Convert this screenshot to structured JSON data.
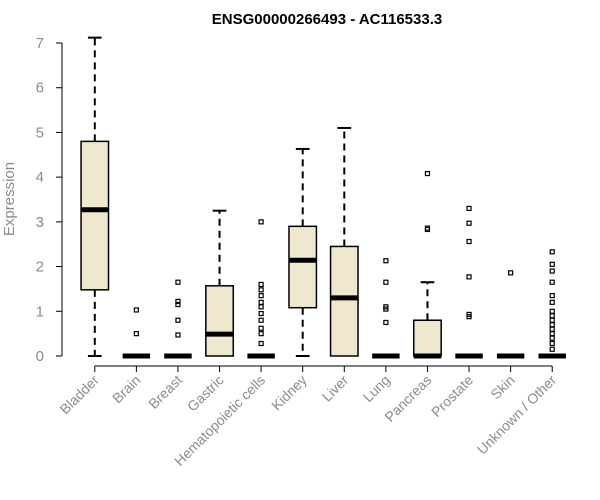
{
  "chart_data": {
    "type": "boxplot",
    "title": "ENSG00000266493 - AC116533.3",
    "xlabel": "",
    "ylabel": "Expression",
    "ylim": [
      0,
      7
    ],
    "yticks": [
      0,
      1,
      2,
      3,
      4,
      5,
      6,
      7
    ],
    "grid": false,
    "box_color": "#efe8cf",
    "categories": [
      "Bladder",
      "Brain",
      "Breast",
      "Gastric",
      "Hematopoietic cells",
      "Kidney",
      "Liver",
      "Lung",
      "Pancreas",
      "Prostate",
      "Skin",
      "Unknown / Other"
    ],
    "boxes": [
      {
        "min": 0.0,
        "q1": 1.48,
        "median": 3.27,
        "q3": 4.8,
        "max": 7.12,
        "outliers": []
      },
      {
        "min": 0.0,
        "q1": 0.0,
        "median": 0.0,
        "q3": 0.0,
        "max": 0.0,
        "outliers": [
          0.5,
          1.03
        ]
      },
      {
        "min": 0.0,
        "q1": 0.0,
        "median": 0.0,
        "q3": 0.0,
        "max": 0.0,
        "outliers": [
          0.47,
          0.8,
          1.15,
          1.22,
          1.65
        ]
      },
      {
        "min": 0.0,
        "q1": 0.0,
        "median": 0.49,
        "q3": 1.57,
        "max": 3.25,
        "outliers": []
      },
      {
        "min": 0.0,
        "q1": 0.0,
        "median": 0.0,
        "q3": 0.0,
        "max": 0.0,
        "outliers": [
          0.28,
          0.5,
          0.62,
          0.8,
          0.95,
          1.1,
          1.2,
          1.35,
          1.48,
          1.6,
          3.0
        ]
      },
      {
        "min": 0.0,
        "q1": 1.08,
        "median": 2.14,
        "q3": 2.9,
        "max": 4.63,
        "outliers": []
      },
      {
        "min": 0.0,
        "q1": 0.0,
        "median": 1.3,
        "q3": 2.45,
        "max": 5.1,
        "outliers": []
      },
      {
        "min": 0.0,
        "q1": 0.0,
        "median": 0.0,
        "q3": 0.0,
        "max": 0.0,
        "outliers": [
          0.75,
          1.05,
          1.1,
          1.65,
          2.13
        ]
      },
      {
        "min": 0.0,
        "q1": 0.0,
        "median": 0.0,
        "q3": 0.8,
        "max": 1.65,
        "outliers": [
          2.83,
          2.86,
          4.08
        ]
      },
      {
        "min": 0.0,
        "q1": 0.0,
        "median": 0.0,
        "q3": 0.0,
        "max": 0.0,
        "outliers": [
          0.88,
          0.93,
          1.77,
          2.56,
          2.97,
          3.3
        ]
      },
      {
        "min": 0.0,
        "q1": 0.0,
        "median": 0.0,
        "q3": 0.0,
        "max": 0.0,
        "outliers": [
          1.86
        ]
      },
      {
        "min": 0.0,
        "q1": 0.0,
        "median": 0.0,
        "q3": 0.0,
        "max": 0.0,
        "outliers": [
          0.15,
          0.28,
          0.4,
          0.5,
          0.6,
          0.7,
          0.8,
          0.9,
          1.0,
          1.2,
          1.35,
          1.65,
          1.9,
          2.05,
          2.33
        ]
      }
    ]
  }
}
